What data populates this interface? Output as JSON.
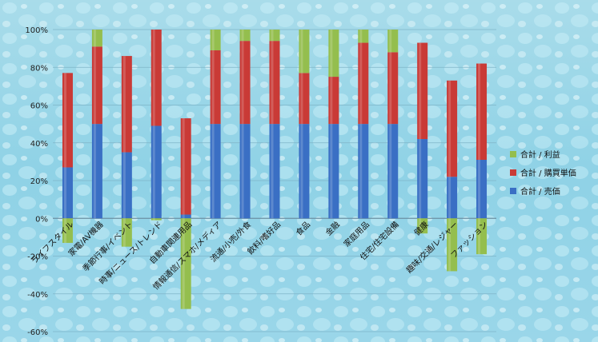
{
  "chart_data": {
    "type": "bar",
    "stacked": true,
    "categories": [
      "ライフスタイル",
      "家電/AV機器",
      "季節行事/イベント",
      "時事/ニュース/トレンド",
      "自動車関連用品",
      "情報通信/スマホ/メディア",
      "流通/小売/外食",
      "飲料/嗜好品",
      "食品",
      "金融",
      "家庭用品",
      "住宅/住宅設備",
      "健康",
      "趣味/交通/レジャー",
      "ファッション"
    ],
    "series": [
      {
        "name": "合計 / 売価",
        "color": "#3a6fc4",
        "values": [
          27,
          50,
          35,
          49,
          2,
          50,
          50,
          50,
          50,
          50,
          50,
          50,
          42,
          22,
          31
        ]
      },
      {
        "name": "合計 / 購買単価",
        "color": "#c93a36",
        "values": [
          50,
          41,
          51,
          51,
          51,
          39,
          44,
          44,
          27,
          25,
          43,
          38,
          51,
          51,
          51
        ]
      },
      {
        "name": "合計 / 利益",
        "color": "#94be4e",
        "values": [
          -13,
          9,
          -15,
          -1,
          -48,
          11,
          6,
          6,
          23,
          25,
          7,
          12,
          -8,
          -28,
          -19
        ]
      }
    ],
    "yticks": [
      "100%",
      "80%",
      "60%",
      "40%",
      "20%",
      "0%",
      "-20%",
      "-40%",
      "-60%"
    ],
    "ylim": [
      -60,
      100
    ],
    "legend_position": "right",
    "grid": true
  }
}
